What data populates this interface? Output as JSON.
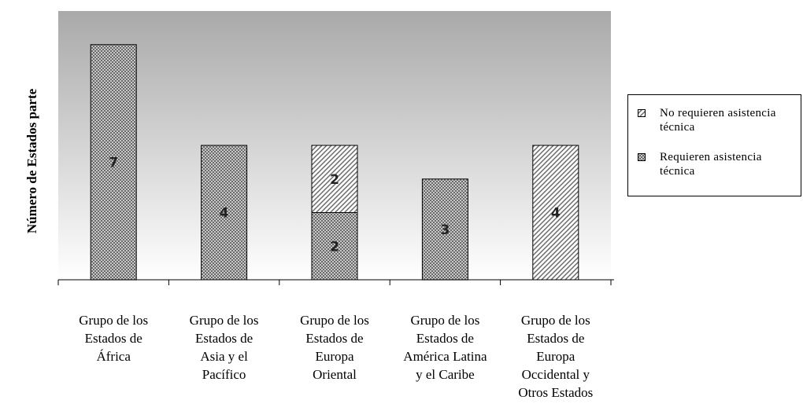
{
  "chart_data": {
    "type": "bar",
    "stacked": true,
    "title": "",
    "xlabel": "",
    "ylabel": "Número de Estados parte",
    "ylim": [
      0,
      8
    ],
    "grid": false,
    "legend_position": "right",
    "categories": [
      "Grupo de los Estados de África",
      "Grupo de los Estados de Asia y el Pacífico",
      "Grupo de los Estados de Europa Oriental",
      "Grupo de los Estados de América Latina y el Caribe",
      "Grupo de los Estados de Europa Occidental y Otros Estados"
    ],
    "category_lines": [
      [
        "Grupo de los",
        "Estados de",
        "África"
      ],
      [
        "Grupo de los",
        "Estados de",
        "Asia y el",
        "Pacífico"
      ],
      [
        "Grupo de los",
        "Estados de",
        "Europa",
        "Oriental"
      ],
      [
        "Grupo de los",
        "Estados de",
        "América Latina",
        "y el Caribe"
      ],
      [
        "Grupo de los",
        "Estados de",
        "Europa",
        "Occidental y",
        "Otros Estados"
      ]
    ],
    "series": [
      {
        "name": "Requieren asistencia técnica",
        "values": [
          7,
          4,
          2,
          3,
          0
        ],
        "pattern": "crosshatch",
        "color": "#8a8a8a"
      },
      {
        "name": "No requieren asistencia técnica",
        "values": [
          0,
          0,
          2,
          0,
          4
        ],
        "pattern": "diagonal",
        "color": "#7a7a7a"
      }
    ],
    "legend": [
      {
        "label": "No requieren asistencia técnica",
        "pattern": "diagonal"
      },
      {
        "label": "Requieren asistencia técnica",
        "pattern": "crosshatch"
      }
    ]
  }
}
